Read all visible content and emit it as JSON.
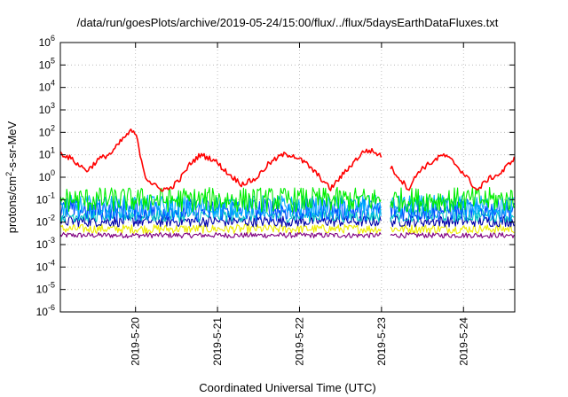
{
  "chart_data": {
    "type": "line",
    "title": "/data/run/goesPlots/archive/2019-05-24/15:00/flux/../flux/5daysEarthDataFluxes.txt",
    "xlabel": "Coordinated Universal Time (UTC)",
    "ylabel_parts": [
      "protons/cm",
      "2",
      "-s-sr-MeV"
    ],
    "xlim": [
      "2019-05-19T02:00",
      "2019-05-24T15:00"
    ],
    "ylim": [
      1e-06,
      1000000.0
    ],
    "y_scale": "log",
    "grid": true,
    "x_ticks": [
      {
        "label": "2019-5-20",
        "at": "2019-05-20T00:00"
      },
      {
        "label": "2019-5-21",
        "at": "2019-05-21T00:00"
      },
      {
        "label": "2019-5-22",
        "at": "2019-05-22T00:00"
      },
      {
        "label": "2019-5-23",
        "at": "2019-05-23T00:00"
      },
      {
        "label": "2019-5-24",
        "at": "2019-05-24T00:00"
      }
    ],
    "y_ticks": [
      {
        "base": "10",
        "exp": "6",
        "value": 1000000.0
      },
      {
        "base": "10",
        "exp": "5",
        "value": 100000.0
      },
      {
        "base": "10",
        "exp": "4",
        "value": 10000.0
      },
      {
        "base": "10",
        "exp": "3",
        "value": 1000.0
      },
      {
        "base": "10",
        "exp": "2",
        "value": 100.0
      },
      {
        "base": "10",
        "exp": "1",
        "value": 10.0
      },
      {
        "base": "10",
        "exp": "0",
        "value": 1.0
      },
      {
        "base": "10",
        "exp": "-1",
        "value": 0.1
      },
      {
        "base": "10",
        "exp": "-2",
        "value": 0.01
      },
      {
        "base": "10",
        "exp": "-3",
        "value": 0.001
      },
      {
        "base": "10",
        "exp": "-4",
        "value": 0.0001
      },
      {
        "base": "10",
        "exp": "-5",
        "value": 1e-05
      },
      {
        "base": "10",
        "exp": "-6",
        "value": 1e-06
      }
    ],
    "data_gap": [
      "2019-05-23T00:00",
      "2019-05-23T02:30"
    ],
    "series": [
      {
        "color": "#ff0000",
        "noise": 0.12,
        "points": [
          [
            "2019-05-19T02:00",
            12
          ],
          [
            "2019-05-19T05:00",
            7
          ],
          [
            "2019-05-19T08:00",
            3
          ],
          [
            "2019-05-19T10:00",
            2
          ],
          [
            "2019-05-19T13:00",
            6
          ],
          [
            "2019-05-19T17:00",
            12
          ],
          [
            "2019-05-19T20:00",
            45
          ],
          [
            "2019-05-19T22:30",
            110
          ],
          [
            "2019-05-20T00:00",
            90
          ],
          [
            "2019-05-20T01:00",
            20
          ],
          [
            "2019-05-20T02:00",
            4
          ],
          [
            "2019-05-20T03:00",
            1
          ],
          [
            "2019-05-20T05:00",
            0.5
          ],
          [
            "2019-05-20T07:00",
            0.3
          ],
          [
            "2019-05-20T10:00",
            0.3
          ],
          [
            "2019-05-20T13:00",
            0.8
          ],
          [
            "2019-05-20T16:00",
            4
          ],
          [
            "2019-05-20T19:00",
            10
          ],
          [
            "2019-05-20T23:00",
            6
          ],
          [
            "2019-05-21T03:00",
            1.5
          ],
          [
            "2019-05-21T07:00",
            0.5
          ],
          [
            "2019-05-21T11:00",
            0.8
          ],
          [
            "2019-05-21T15:00",
            4
          ],
          [
            "2019-05-21T19:00",
            10
          ],
          [
            "2019-05-21T22:00",
            10
          ],
          [
            "2019-05-22T02:00",
            4
          ],
          [
            "2019-05-22T06:00",
            1
          ],
          [
            "2019-05-22T09:00",
            0.3
          ],
          [
            "2019-05-22T12:00",
            1
          ],
          [
            "2019-05-22T16:00",
            5
          ],
          [
            "2019-05-22T19:00",
            15
          ],
          [
            "2019-05-22T21:00",
            15
          ],
          [
            "2019-05-23T00:00",
            9
          ],
          [
            "2019-05-23T02:30",
            3
          ],
          [
            "2019-05-23T05:00",
            1
          ],
          [
            "2019-05-23T08:00",
            0.3
          ],
          [
            "2019-05-23T11:00",
            2
          ],
          [
            "2019-05-23T15:00",
            5
          ],
          [
            "2019-05-23T18:00",
            10
          ],
          [
            "2019-05-23T21:00",
            5
          ],
          [
            "2019-05-24T01:00",
            1
          ],
          [
            "2019-05-24T04:00",
            0.25
          ],
          [
            "2019-05-24T07:00",
            0.8
          ],
          [
            "2019-05-24T11:00",
            1.5
          ],
          [
            "2019-05-24T15:00",
            8
          ]
        ]
      },
      {
        "color": "#00ee00",
        "level": 0.1,
        "noise": 0.55
      },
      {
        "color": "#00aaff",
        "level": 0.05,
        "noise": 0.5
      },
      {
        "color": "#0050ff",
        "level": 0.035,
        "noise": 0.5
      },
      {
        "color": "#00c8c8",
        "level": 0.02,
        "noise": 0.3
      },
      {
        "color": "#0000aa",
        "level": 0.011,
        "noise": 0.25
      },
      {
        "color": "#eeee00",
        "level": 0.005,
        "noise": 0.2
      },
      {
        "color": "#800080",
        "level": 0.0026,
        "noise": 0.12
      }
    ]
  }
}
